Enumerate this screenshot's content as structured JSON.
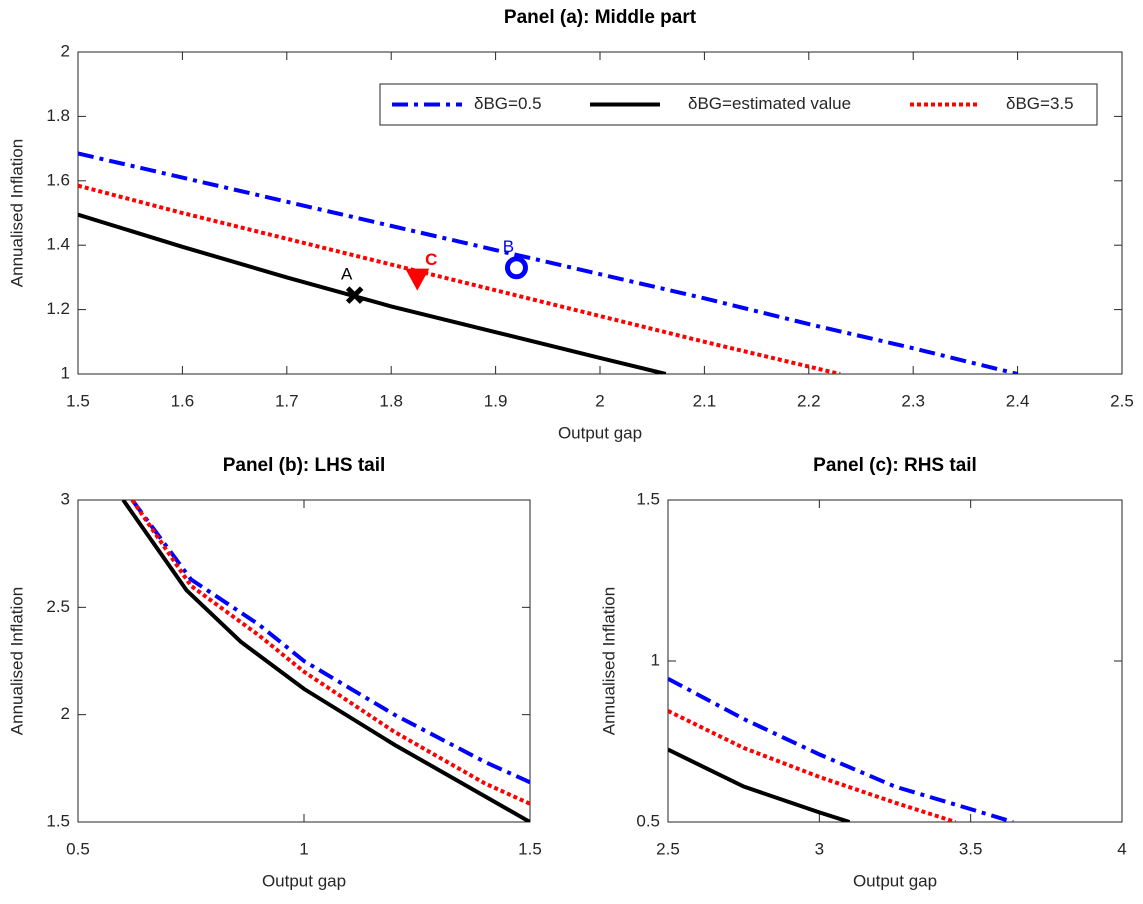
{
  "chart_data": [
    {
      "type": "line",
      "title": "Panel (a): Middle part",
      "xlabel": "Output gap",
      "ylabel": "Annualised Inflation",
      "xlim": [
        1.5,
        2.5
      ],
      "ylim": [
        1,
        2
      ],
      "xticks": [
        1.5,
        1.6,
        1.7,
        1.8,
        1.9,
        2,
        2.1,
        2.2,
        2.3,
        2.4,
        2.5
      ],
      "yticks": [
        1,
        1.2,
        1.4,
        1.6,
        1.8,
        2
      ],
      "legend": "top-right",
      "series": [
        {
          "name": "δBG=0.5",
          "color": "#0000ff",
          "line_style": "dash-dot",
          "x": [
            1.5,
            1.6,
            1.7,
            1.8,
            1.9,
            2.0,
            2.1,
            2.2,
            2.3,
            2.4
          ],
          "values": [
            1.685,
            1.61,
            1.535,
            1.46,
            1.385,
            1.31,
            1.235,
            1.155,
            1.08,
            1.0
          ]
        },
        {
          "name": "δBG=estimated value",
          "color": "#000000",
          "line_style": "solid",
          "x": [
            1.5,
            1.6,
            1.7,
            1.8,
            1.9,
            2.0,
            2.063
          ],
          "values": [
            1.495,
            1.395,
            1.3,
            1.21,
            1.13,
            1.05,
            1.0
          ]
        },
        {
          "name": "δBG=3.5",
          "color": "#ff0000",
          "line_style": "dotted",
          "x": [
            1.5,
            1.6,
            1.7,
            1.8,
            1.9,
            2.0,
            2.1,
            2.23
          ],
          "values": [
            1.585,
            1.5,
            1.42,
            1.34,
            1.26,
            1.18,
            1.1,
            1.0
          ]
        }
      ],
      "points": [
        {
          "label": "A",
          "x": 1.765,
          "y": 1.245,
          "color": "#000000",
          "marker": "x"
        },
        {
          "label": "B",
          "x": 1.92,
          "y": 1.33,
          "color": "#0000ff",
          "marker": "circle"
        },
        {
          "label": "C",
          "x": 1.825,
          "y": 1.29,
          "color": "#ff0000",
          "marker": "triangle"
        }
      ]
    },
    {
      "type": "line",
      "title": "Panel (b): LHS tail",
      "xlabel": "Output gap",
      "ylabel": "Annualised Inflation",
      "xlim": [
        0.5,
        1.5
      ],
      "ylim": [
        1.5,
        3
      ],
      "xticks": [
        0.5,
        1,
        1.5
      ],
      "yticks": [
        1.5,
        2,
        2.5,
        3
      ],
      "series": [
        {
          "color": "#0000ff",
          "line_style": "dash-dot",
          "x": [
            0.62,
            0.75,
            0.9,
            1.0,
            1.2,
            1.4,
            1.5
          ],
          "values": [
            3.0,
            2.63,
            2.42,
            2.25,
            2.0,
            1.78,
            1.685
          ]
        },
        {
          "color": "#ff0000",
          "line_style": "dotted",
          "x": [
            0.62,
            0.75,
            0.9,
            1.0,
            1.2,
            1.4,
            1.5
          ],
          "values": [
            3.0,
            2.6,
            2.37,
            2.2,
            1.92,
            1.68,
            1.585
          ]
        },
        {
          "color": "#000000",
          "line_style": "solid",
          "x": [
            0.6,
            0.74,
            0.86,
            1.0,
            1.2,
            1.4,
            1.5
          ],
          "values": [
            3.0,
            2.58,
            2.34,
            2.12,
            1.86,
            1.62,
            1.5
          ]
        }
      ]
    },
    {
      "type": "line",
      "title": "Panel (c): RHS tail",
      "xlabel": "Output gap",
      "ylabel": "Annualised Inflation",
      "xlim": [
        2.5,
        4
      ],
      "ylim": [
        0.5,
        1.5
      ],
      "xticks": [
        2.5,
        3,
        3.5,
        4
      ],
      "yticks": [
        0.5,
        1,
        1.5
      ],
      "series": [
        {
          "color": "#0000ff",
          "line_style": "dash-dot",
          "x": [
            2.5,
            2.75,
            3.0,
            3.25,
            3.5,
            3.64
          ],
          "values": [
            0.945,
            0.82,
            0.71,
            0.61,
            0.54,
            0.5
          ]
        },
        {
          "color": "#ff0000",
          "line_style": "dotted",
          "x": [
            2.5,
            2.75,
            3.0,
            3.25,
            3.45
          ],
          "values": [
            0.845,
            0.73,
            0.64,
            0.56,
            0.5
          ]
        },
        {
          "color": "#000000",
          "line_style": "solid",
          "x": [
            2.5,
            2.75,
            3.0,
            3.1
          ],
          "values": [
            0.725,
            0.61,
            0.53,
            0.5
          ]
        }
      ]
    }
  ]
}
